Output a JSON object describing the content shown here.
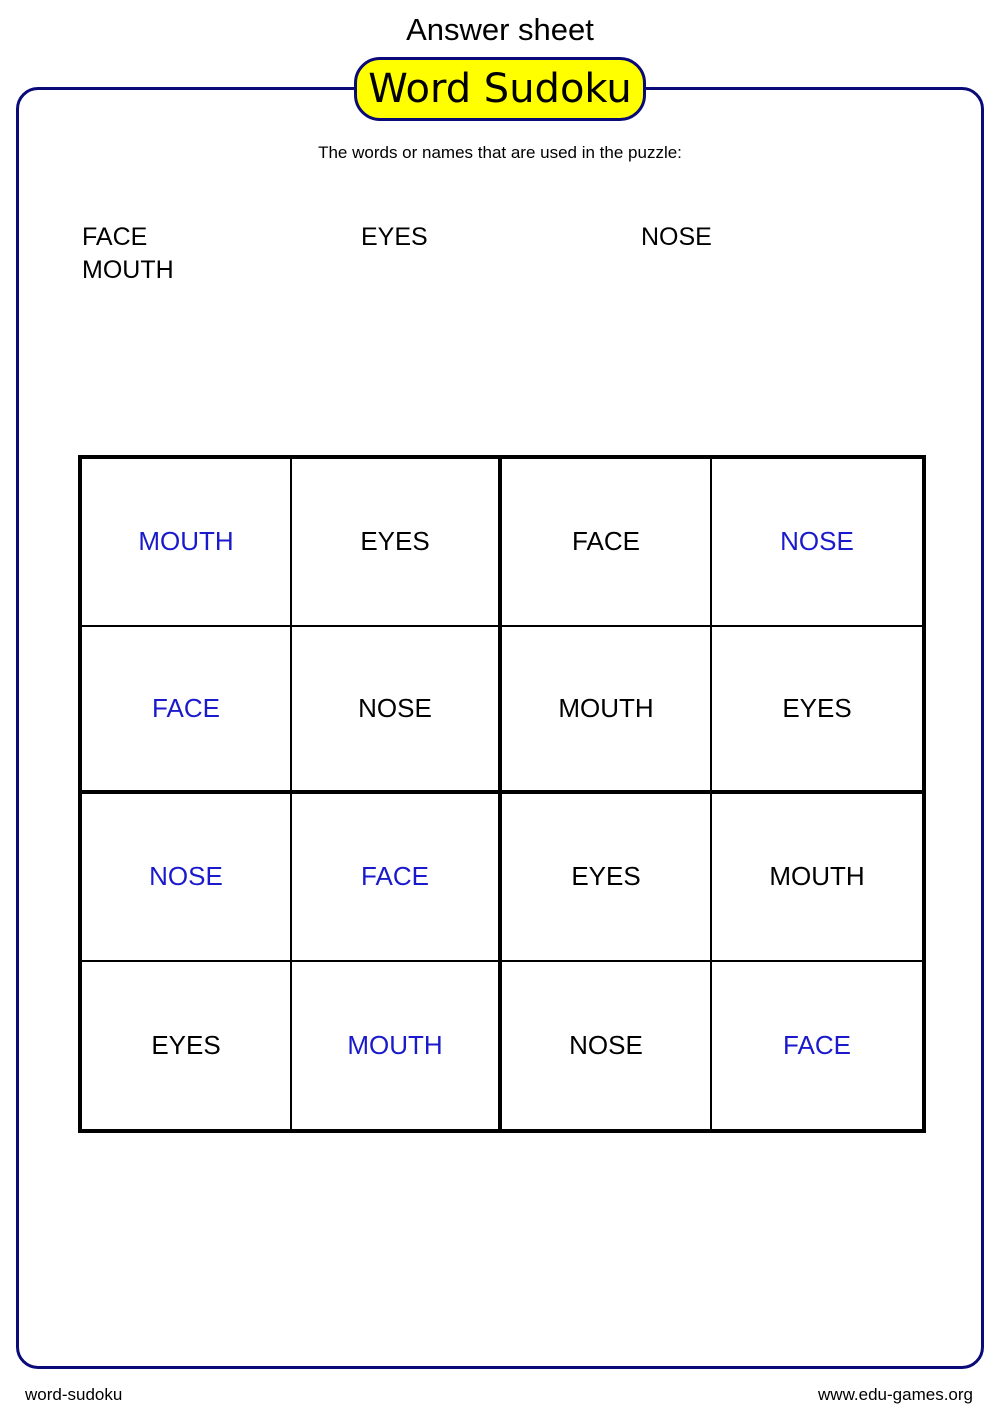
{
  "header": {
    "title": "Answer sheet",
    "badge": "Word Sudoku"
  },
  "subtitle": "The words or names that are used in the puzzle:",
  "words": [
    "FACE",
    "EYES",
    "NOSE",
    "MOUTH"
  ],
  "colors": {
    "given": "#000000",
    "answer": "#1a1acc",
    "frame": "#0a0a78",
    "badge": "#ffff00"
  },
  "grid": [
    [
      {
        "text": "MOUTH",
        "answer": true
      },
      {
        "text": "EYES",
        "answer": false
      },
      {
        "text": "FACE",
        "answer": false
      },
      {
        "text": "NOSE",
        "answer": true
      }
    ],
    [
      {
        "text": "FACE",
        "answer": true
      },
      {
        "text": "NOSE",
        "answer": false
      },
      {
        "text": "MOUTH",
        "answer": false
      },
      {
        "text": "EYES",
        "answer": false
      }
    ],
    [
      {
        "text": "NOSE",
        "answer": true
      },
      {
        "text": "FACE",
        "answer": true
      },
      {
        "text": "EYES",
        "answer": false
      },
      {
        "text": "MOUTH",
        "answer": false
      }
    ],
    [
      {
        "text": "EYES",
        "answer": false
      },
      {
        "text": "MOUTH",
        "answer": true
      },
      {
        "text": "NOSE",
        "answer": false
      },
      {
        "text": "FACE",
        "answer": true
      }
    ]
  ],
  "footer": {
    "left": "word-sudoku",
    "right": "www.edu-games.org"
  }
}
